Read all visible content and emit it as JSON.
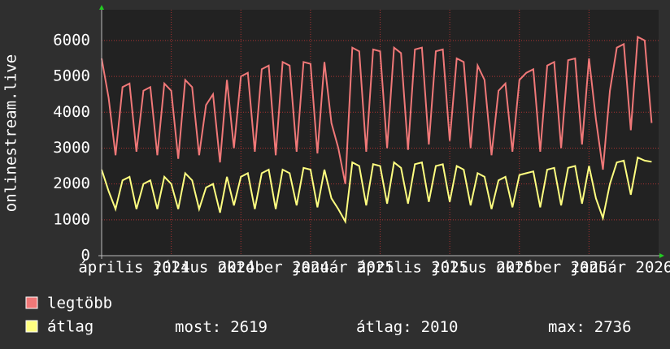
{
  "chart_data": {
    "type": "line",
    "y_label": "onlinestream.live",
    "x": [
      0,
      1,
      2,
      3,
      4,
      5,
      6,
      7,
      8,
      9,
      10,
      11,
      12,
      13,
      14,
      15,
      16,
      17,
      18,
      19,
      20,
      21,
      22,
      23,
      24,
      25,
      26,
      27,
      28,
      29,
      30,
      31,
      32,
      33,
      34,
      35,
      36,
      37,
      38,
      39,
      40,
      41,
      42,
      43,
      44,
      45,
      46,
      47,
      48,
      49,
      50,
      51,
      52,
      53,
      54,
      55,
      56,
      57,
      58,
      59,
      60,
      61,
      62,
      63,
      64,
      65,
      66,
      67,
      68,
      69,
      70,
      71,
      72,
      73,
      74,
      75,
      76,
      77,
      78,
      79
    ],
    "xlim": [
      0,
      80
    ],
    "xticks": [
      {
        "value": 0,
        "label": "április 2024"
      },
      {
        "value": 10,
        "label": "július 2024"
      },
      {
        "value": 20,
        "label": "október 2024"
      },
      {
        "value": 30,
        "label": "január 2025"
      },
      {
        "value": 40,
        "label": "április 2025"
      },
      {
        "value": 50,
        "label": "július 2025"
      },
      {
        "value": 60,
        "label": "október 2025"
      },
      {
        "value": 70,
        "label": "január 2026"
      }
    ],
    "ylim": [
      0,
      6790
    ],
    "yticks": [
      0,
      1000,
      2000,
      3000,
      4000,
      5000,
      6000
    ],
    "grid": true,
    "series": [
      {
        "name": "legtöbb",
        "color": "#f07878",
        "values": [
          5500,
          4400,
          2800,
          4700,
          4800,
          2900,
          4600,
          4700,
          2800,
          4800,
          4600,
          2700,
          4900,
          4700,
          2800,
          4200,
          4500,
          2600,
          4900,
          3000,
          5000,
          5100,
          2900,
          5200,
          5300,
          2800,
          5400,
          5300,
          2900,
          5400,
          5350,
          2850,
          5400,
          3700,
          3000,
          2000,
          5800,
          5700,
          2900,
          5750,
          5700,
          3000,
          5800,
          5650,
          2950,
          5750,
          5800,
          3100,
          5700,
          5750,
          3200,
          5500,
          5400,
          3000,
          5300,
          4900,
          2800,
          4600,
          4800,
          2900,
          4900,
          5100,
          5200,
          2900,
          5300,
          5400,
          3000,
          5450,
          5500,
          3100,
          5500,
          3800,
          2400,
          4600,
          5800,
          5900,
          3500,
          6100,
          6000,
          3700
        ]
      },
      {
        "name": "átlag",
        "color": "#ffff80",
        "values": [
          2400,
          1800,
          1300,
          2100,
          2200,
          1300,
          2000,
          2100,
          1300,
          2200,
          2000,
          1300,
          2300,
          2100,
          1300,
          1900,
          2000,
          1200,
          2200,
          1400,
          2200,
          2300,
          1300,
          2300,
          2400,
          1300,
          2400,
          2300,
          1400,
          2450,
          2400,
          1350,
          2400,
          1600,
          1300,
          950,
          2600,
          2500,
          1400,
          2550,
          2500,
          1450,
          2600,
          2450,
          1450,
          2550,
          2600,
          1500,
          2500,
          2550,
          1500,
          2500,
          2400,
          1400,
          2300,
          2200,
          1300,
          2100,
          2200,
          1350,
          2250,
          2300,
          2350,
          1350,
          2400,
          2450,
          1400,
          2450,
          2500,
          1450,
          2500,
          1600,
          1050,
          2000,
          2600,
          2650,
          1700,
          2736,
          2650,
          2619
        ]
      }
    ],
    "stats": [
      {
        "label": "most:",
        "value": 2619
      },
      {
        "label": "átlag:",
        "value": 2010
      },
      {
        "label": "max:",
        "value": 2736
      }
    ]
  }
}
